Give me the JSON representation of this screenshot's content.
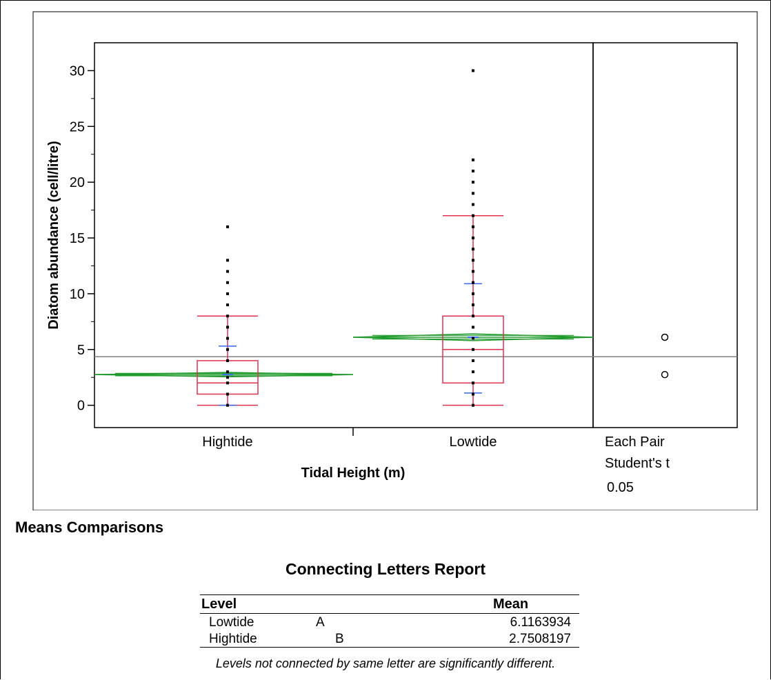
{
  "chart_data": {
    "type": "box",
    "xlabel": "Tidal Height (m)",
    "ylabel": "Diatom abundance (cell/litre)",
    "ylim": [
      -2,
      32.5
    ],
    "yticks": [
      0,
      5,
      10,
      15,
      20,
      25,
      30
    ],
    "categories": [
      "Hightide",
      "Lowtide"
    ],
    "grand_mean": 4.35,
    "groups": [
      {
        "name": "Hightide",
        "box": {
          "whisker_low": 0,
          "q1": 1,
          "median": 2,
          "q3": 4,
          "whisker_high": 8
        },
        "mean": 2.75,
        "ci_low": 2.55,
        "ci_high": 2.95,
        "std_low": 0,
        "std_high": 5.3,
        "points": [
          0,
          1,
          2,
          2.5,
          3,
          4,
          5,
          6,
          7,
          8,
          9,
          10,
          11,
          12,
          13,
          16
        ]
      },
      {
        "name": "Lowtide",
        "box": {
          "whisker_low": 0,
          "q1": 2,
          "median": 5,
          "q3": 8,
          "whisker_high": 17
        },
        "mean": 6.1,
        "ci_low": 5.8,
        "ci_high": 6.4,
        "std_low": 1.1,
        "std_high": 10.9,
        "points": [
          0,
          1,
          2,
          3,
          4,
          5,
          6,
          7,
          8,
          9,
          10,
          11,
          12,
          13,
          14,
          15,
          16,
          17,
          18,
          19,
          20,
          21,
          22,
          30
        ]
      }
    ],
    "comparison_circles": [
      {
        "name": "Lowtide",
        "y": 6.1
      },
      {
        "name": "Hightide",
        "y": 2.75
      }
    ],
    "side_panel_label": [
      "Each Pair",
      "Student's t",
      "0.05"
    ],
    "colors": {
      "box": "#e0304e",
      "diamond": "#1f9a2b",
      "std": "#3366ee",
      "points": "#000000",
      "grand_mean": "#808080"
    }
  },
  "report": {
    "section_title": "Means Comparisons",
    "title": "Connecting Letters Report",
    "columns": {
      "level": "Level",
      "mean": "Mean"
    },
    "rows": [
      {
        "level": "Lowtide",
        "letter": "A",
        "mean": "6.1163934"
      },
      {
        "level": "Hightide",
        "letter": "B",
        "mean": "2.7508197"
      }
    ],
    "note": "Levels not connected by same letter are significantly different."
  }
}
